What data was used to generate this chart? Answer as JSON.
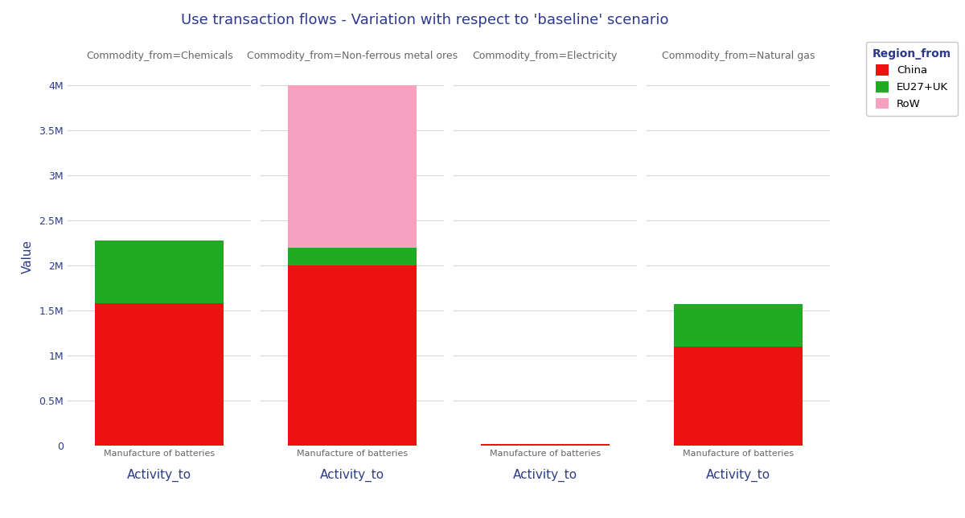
{
  "title": "Use transaction flows - Variation with respect to 'baseline' scenario",
  "title_color": "#2d3a8c",
  "ylabel": "Value",
  "ylabel_color": "#2d3a8c",
  "subplots": [
    {
      "subtitle": "Commodity_from=Chemicals",
      "activity_label": "Activity_to",
      "bar_label": "Manufacture of batteries",
      "china": 1580000,
      "eu27uk": 700000,
      "row": 0
    },
    {
      "subtitle": "Commodity_from=Non-ferrous metal ores",
      "activity_label": "Activity_to",
      "bar_label": "Manufacture of batteries",
      "china": 2000000,
      "eu27uk": 200000,
      "row": 1800000
    },
    {
      "subtitle": "Commodity_from=Electricity",
      "activity_label": "Activity_to",
      "bar_label": "Manufacture of batteries",
      "china": 20000,
      "eu27uk": 0,
      "row": 0
    },
    {
      "subtitle": "Commodity_from=Natural gas",
      "activity_label": "Activity_to",
      "bar_label": "Manufacture of batteries",
      "china": 1100000,
      "eu27uk": 470000,
      "row": 0
    }
  ],
  "colors": {
    "China": "#ee1111",
    "EU27+UK": "#22aa22",
    "RoW": "#f8a0c0"
  },
  "legend_title": "Region_from",
  "legend_title_color": "#2d3a8c",
  "legend_labels": [
    "China",
    "EU27+UK",
    "RoW"
  ],
  "ylim": [
    0,
    4200000
  ],
  "yticks": [
    0,
    500000,
    1000000,
    1500000,
    2000000,
    2500000,
    3000000,
    3500000,
    4000000
  ],
  "ytick_labels": [
    "0",
    "0.5M",
    "1M",
    "1.5M",
    "2M",
    "2.5M",
    "3M",
    "3.5M",
    "4M"
  ],
  "background_color": "#ffffff",
  "subtitle_color": "#666666",
  "bar_label_color": "#666666",
  "axis_label_color": "#2d3a8c",
  "grid_color": "#d8d8d8",
  "title_fontsize": 13,
  "subtitle_fontsize": 9,
  "bar_label_fontsize": 8,
  "xlabel_fontsize": 11,
  "ylabel_fontsize": 11,
  "ytick_fontsize": 9
}
